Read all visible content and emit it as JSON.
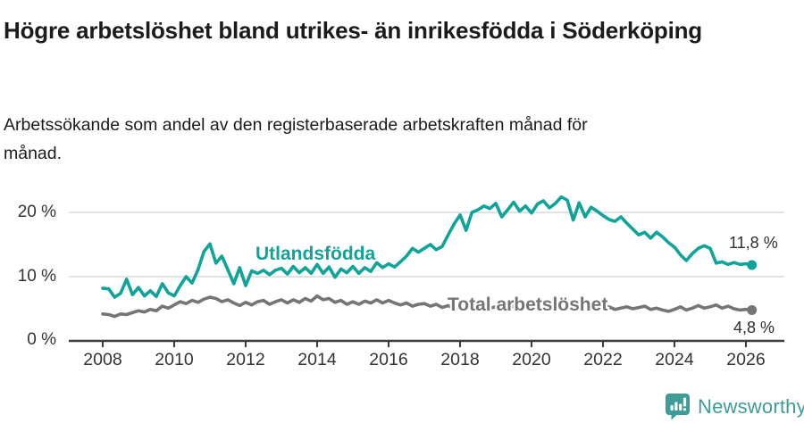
{
  "header": {
    "title": "Högre arbetslöshet bland utrikes- än inrikesfödda i Söderköping",
    "subtitle": "Arbetssökande som andel av den registerbaserade arbetskraften månad för månad."
  },
  "chart_data": {
    "type": "line",
    "x_start": 2008,
    "points_per_year": 6,
    "xlim": [
      2007.05,
      2027.1
    ],
    "ylim": [
      0,
      24
    ],
    "grid": "horizontal",
    "legend_position": "inline-labels",
    "x_ticks": [
      2008,
      2010,
      2012,
      2014,
      2016,
      2018,
      2020,
      2022,
      2024,
      2026
    ],
    "x_tick_labels": [
      "2008",
      "2010",
      "2012",
      "2014",
      "2016",
      "2018",
      "2020",
      "2022",
      "2024",
      "2026"
    ],
    "y_ticks": [
      0,
      10,
      20
    ],
    "y_tick_labels": [
      "0 %",
      "10 %",
      "20 %"
    ],
    "colors": {
      "utlandsfodda": "#10a39a",
      "total": "#757575",
      "grid": "#d9d9d9",
      "axis": "#3d3d3d",
      "text": "#333333"
    },
    "series": [
      {
        "name": "Utlandsfödda",
        "color": "#10a39a",
        "end_label": "11,8 %",
        "end_value": 11.8,
        "values": [
          8.2,
          8.1,
          6.8,
          7.4,
          9.6,
          7.2,
          8.3,
          7.0,
          7.8,
          6.9,
          8.9,
          7.5,
          7.0,
          8.6,
          10.0,
          9.0,
          11.1,
          13.9,
          15.1,
          12.1,
          13.2,
          11.1,
          8.9,
          11.4,
          8.6,
          10.9,
          10.5,
          11.0,
          10.3,
          11.0,
          11.3,
          10.4,
          11.6,
          10.6,
          11.4,
          10.5,
          11.9,
          10.5,
          11.5,
          9.9,
          11.2,
          10.6,
          11.6,
          10.5,
          11.4,
          10.8,
          12.2,
          11.4,
          12.0,
          11.5,
          12.3,
          13.2,
          14.4,
          13.8,
          14.4,
          15.0,
          14.2,
          14.7,
          16.5,
          18.2,
          19.6,
          17.2,
          20.0,
          20.4,
          21.0,
          20.6,
          21.4,
          19.3,
          20.4,
          21.6,
          20.2,
          21.0,
          19.9,
          21.3,
          21.8,
          20.7,
          21.4,
          22.4,
          21.9,
          18.8,
          21.5,
          19.3,
          20.8,
          20.2,
          19.5,
          18.9,
          18.6,
          19.3,
          18.3,
          17.4,
          16.5,
          16.9,
          16.0,
          16.9,
          16.2,
          15.3,
          14.6,
          13.4,
          12.5,
          13.6,
          14.4,
          14.8,
          14.4,
          12.1,
          12.3,
          11.9,
          12.2,
          11.9,
          12.0,
          11.8
        ]
      },
      {
        "name": "Total arbetslöshet",
        "color": "#757575",
        "end_label": "4,8 %",
        "end_value": 4.8,
        "values": [
          4.2,
          4.1,
          3.8,
          4.2,
          4.1,
          4.4,
          4.7,
          4.5,
          4.9,
          4.7,
          5.4,
          5.1,
          5.6,
          6.1,
          5.8,
          6.3,
          6.0,
          6.5,
          6.8,
          6.6,
          6.1,
          6.4,
          5.9,
          5.5,
          6.0,
          5.6,
          6.1,
          6.3,
          5.7,
          6.1,
          6.4,
          5.9,
          6.4,
          6.0,
          6.6,
          6.2,
          7.0,
          6.4,
          6.6,
          6.0,
          6.3,
          5.7,
          6.1,
          5.7,
          6.2,
          5.9,
          6.4,
          5.9,
          6.3,
          5.9,
          5.6,
          5.9,
          5.4,
          5.7,
          5.8,
          5.4,
          5.7,
          5.2,
          5.5,
          5.0,
          5.3,
          5.5,
          5.0,
          5.2,
          5.4,
          5.1,
          5.3,
          5.6,
          5.1,
          5.4,
          5.6,
          5.3,
          5.6,
          6.0,
          6.3,
          6.1,
          5.9,
          5.7,
          5.9,
          6.1,
          5.6,
          5.4,
          5.1,
          5.3,
          5.1,
          5.3,
          4.9,
          5.1,
          5.3,
          5.0,
          5.2,
          5.4,
          4.9,
          5.1,
          4.8,
          4.6,
          4.9,
          5.3,
          4.8,
          5.1,
          5.5,
          5.1,
          5.3,
          5.6,
          5.1,
          5.4,
          5.0,
          4.8,
          4.9,
          4.8
        ]
      }
    ]
  },
  "footer": {
    "brand": "Newsworthy",
    "logo_icon": "bar-chart-speech-bubble-icon",
    "brand_color": "#3e9c98"
  }
}
